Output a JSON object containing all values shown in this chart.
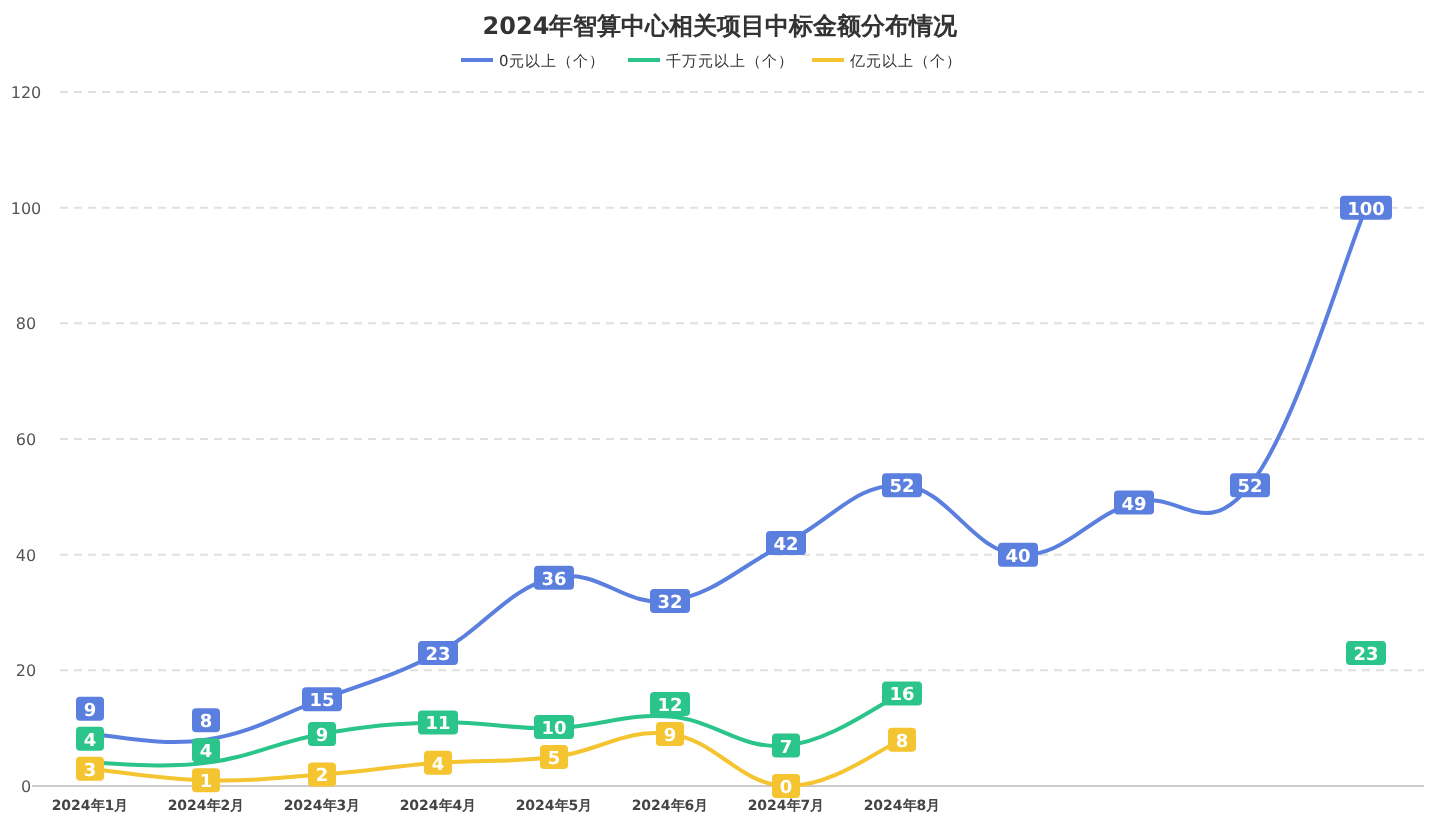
{
  "chart_data": {
    "type": "line",
    "title": "2024年智算中心相关项目中标金额分布情况",
    "categories": [
      "2024年1月",
      "2024年2月",
      "2024年3月",
      "2024年4月",
      "2024年5月",
      "2024年6月",
      "2024年7月",
      "2024年8月",
      null,
      null,
      null,
      null
    ],
    "series": [
      {
        "name": "0元以上（个）",
        "color": "#5b7fde",
        "values": [
          9,
          8,
          15,
          23,
          36,
          32,
          42,
          52,
          40,
          49,
          52,
          100
        ]
      },
      {
        "name": "千万元以上（个）",
        "color": "#2bc48a",
        "values": [
          4,
          4,
          9,
          11,
          10,
          12,
          7,
          16,
          null,
          null,
          null,
          23
        ]
      },
      {
        "name": "亿元以上（个）",
        "color": "#f5c431",
        "values": [
          3,
          1,
          2,
          4,
          5,
          9,
          0,
          8,
          null,
          null,
          null,
          null
        ]
      }
    ],
    "ylim": [
      0,
      120
    ],
    "yticks": [
      0,
      20,
      40,
      60,
      80,
      100,
      120
    ],
    "grid": "y",
    "legend": "top",
    "data_labels": true,
    "marker": "square",
    "line_style": "solid"
  }
}
